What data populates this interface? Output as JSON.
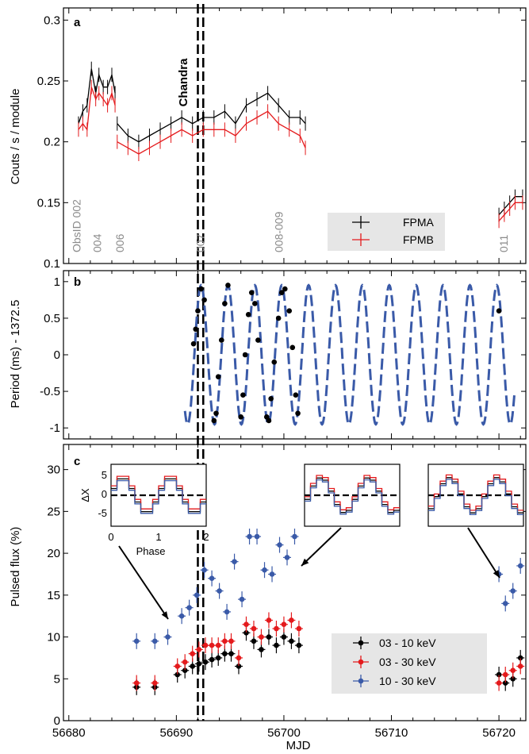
{
  "chart_data": [
    {
      "panel": "a",
      "type": "line",
      "ylabel": "Couts / s / module",
      "ylim": [
        0.1,
        0.31
      ],
      "yticks": [
        "0.1",
        "0.15",
        "0.2",
        "0.25",
        "0.3"
      ],
      "xlim": [
        56679.5,
        56722.5
      ],
      "annotation": "Chandra",
      "obsid_labels": [
        "ObsID 002",
        "004",
        "006",
        "007",
        "008-009",
        "011"
      ],
      "obsid_mjd": [
        56680.8,
        56682.7,
        56684.8,
        56692.3,
        56699.6,
        56720.5
      ],
      "legend": [
        "FPMA",
        "FPMB"
      ],
      "series": [
        {
          "name": "FPMA",
          "color": "#000000",
          "segments": [
            {
              "x": [
                56680.9,
                56681.3,
                56681.7,
                56682.1,
                56682.5,
                56682.8,
                56683.2,
                56683.6,
                56684.0,
                56684.3
              ],
              "y": [
                0.215,
                0.225,
                0.23,
                0.26,
                0.24,
                0.255,
                0.245,
                0.245,
                0.255,
                0.24
              ]
            },
            {
              "x": [
                56684.5,
                56685.5,
                56686.5,
                56687.5,
                56688.5,
                56689.5,
                56690.5,
                56691.5,
                56692.5,
                56693.5,
                56694.5,
                56695.5,
                56696.5,
                56697.5,
                56698.5,
                56699.5,
                56700.5,
                56701.5,
                56702.0
              ],
              "y": [
                0.215,
                0.205,
                0.2,
                0.205,
                0.21,
                0.215,
                0.22,
                0.215,
                0.22,
                0.22,
                0.225,
                0.215,
                0.23,
                0.235,
                0.24,
                0.23,
                0.22,
                0.22,
                0.215
              ]
            },
            {
              "x": [
                56720.0,
                56720.5,
                56721.0,
                56721.5,
                56722.2
              ],
              "y": [
                0.14,
                0.145,
                0.15,
                0.155,
                0.155
              ]
            }
          ]
        },
        {
          "name": "FPMB",
          "color": "#e41a1c",
          "segments": [
            {
              "x": [
                56680.9,
                56681.3,
                56681.7,
                56682.1,
                56682.5,
                56682.8,
                56683.2,
                56683.6,
                56684.0,
                56684.3
              ],
              "y": [
                0.21,
                0.215,
                0.21,
                0.245,
                0.235,
                0.24,
                0.235,
                0.23,
                0.24,
                0.23
              ]
            },
            {
              "x": [
                56684.5,
                56685.5,
                56686.5,
                56687.5,
                56688.5,
                56689.5,
                56690.5,
                56691.5,
                56692.5,
                56693.5,
                56694.5,
                56695.5,
                56696.5,
                56697.5,
                56698.5,
                56699.5,
                56700.5,
                56701.5,
                56702.0
              ],
              "y": [
                0.2,
                0.195,
                0.19,
                0.195,
                0.2,
                0.205,
                0.21,
                0.205,
                0.21,
                0.21,
                0.21,
                0.205,
                0.215,
                0.22,
                0.225,
                0.215,
                0.21,
                0.205,
                0.195
              ]
            },
            {
              "x": [
                56720.0,
                56720.5,
                56721.0,
                56721.5,
                56722.2
              ],
              "y": [
                0.135,
                0.14,
                0.145,
                0.15,
                0.15
              ]
            }
          ]
        }
      ]
    },
    {
      "panel": "b",
      "type": "scatter",
      "ylabel": "Period (ms) - 1372.5",
      "ylim": [
        -1.15,
        1.15
      ],
      "yticks": [
        "-1",
        "-0.5",
        "0",
        "0.5",
        "1"
      ],
      "xlim": [
        56679.5,
        56722.5
      ],
      "model": {
        "x_start": 56690.8,
        "x_end": 56721.5,
        "period_days": 2.5,
        "amplitude": 0.95,
        "peak_mjd": 56692.3,
        "color": "#3a5aa8"
      },
      "points": {
        "x": [
          56691.6,
          56691.8,
          56692.0,
          56692.3,
          56692.6,
          56693.5,
          56693.7,
          56693.9,
          56694.2,
          56694.5,
          56694.8,
          56696.0,
          56696.2,
          56696.4,
          56696.7,
          56697.0,
          56697.3,
          56697.6,
          56698.4,
          56698.6,
          56698.8,
          56699.1,
          56699.5,
          56699.8,
          56700.1,
          56700.5,
          56700.8,
          56701.1,
          56701.3,
          56720.0
        ],
        "y": [
          0.15,
          0.35,
          0.6,
          0.9,
          0.75,
          -0.9,
          -0.8,
          -0.3,
          0.2,
          0.7,
          0.95,
          -0.85,
          -0.55,
          0.0,
          0.55,
          0.85,
          0.7,
          0.2,
          -0.85,
          -0.9,
          -0.6,
          -0.1,
          0.5,
          0.85,
          0.9,
          0.6,
          0.1,
          -0.55,
          -0.8,
          0.6
        ]
      }
    },
    {
      "panel": "c",
      "type": "scatter",
      "ylabel": "Pulsed flux (%)",
      "xlabel": "MJD",
      "ylim": [
        0,
        33
      ],
      "yticks": [
        "0",
        "5",
        "10",
        "15",
        "20",
        "25",
        "30"
      ],
      "xlim": [
        56679.5,
        56722.5
      ],
      "xticks": [
        "56680",
        "56690",
        "56700",
        "56710",
        "56720"
      ],
      "legend": [
        "03 - 10 keV",
        "03 - 30 keV",
        "10 - 30 keV"
      ],
      "series": [
        {
          "name": "03 - 10 keV",
          "color": "#000000",
          "x": [
            56686.3,
            56688.0,
            56690.1,
            56690.8,
            56691.5,
            56692.1,
            56692.7,
            56693.3,
            56693.9,
            56694.5,
            56695.1,
            56695.8,
            56696.5,
            56697.2,
            56697.9,
            56698.6,
            56699.3,
            56700.0,
            56700.7,
            56701.4,
            56720.0,
            56720.6,
            56721.3,
            56722.0
          ],
          "y": [
            4.0,
            4.0,
            5.5,
            6.0,
            6.5,
            6.8,
            7.0,
            7.3,
            7.5,
            8.0,
            8.0,
            6.5,
            10.5,
            9.5,
            8.5,
            10.0,
            9.0,
            10.0,
            9.5,
            9.0,
            5.5,
            4.5,
            5.0,
            7.5
          ]
        },
        {
          "name": "03 - 30 keV",
          "color": "#e41a1c",
          "x": [
            56686.3,
            56688.0,
            56690.1,
            56690.8,
            56691.5,
            56692.1,
            56692.7,
            56693.3,
            56693.9,
            56694.5,
            56695.1,
            56695.8,
            56696.5,
            56697.2,
            56697.9,
            56698.6,
            56699.3,
            56700.0,
            56700.7,
            56701.4,
            56720.0,
            56720.6,
            56721.3,
            56722.0
          ],
          "y": [
            4.5,
            4.5,
            6.5,
            7.0,
            8.0,
            8.5,
            9.0,
            9.0,
            9.0,
            9.5,
            9.5,
            7.5,
            11.5,
            11.0,
            10.0,
            12.0,
            11.0,
            11.5,
            12.0,
            11.0,
            4.5,
            5.5,
            6.0,
            6.5
          ]
        },
        {
          "name": "10 - 30 keV",
          "color": "#3a5aa8",
          "x": [
            56686.3,
            56688.0,
            56689.2,
            56690.5,
            56691.2,
            56691.9,
            56692.6,
            56693.3,
            56694.0,
            56694.7,
            56695.4,
            56696.1,
            56696.8,
            56697.5,
            56698.2,
            56698.9,
            56699.6,
            56700.3,
            56701.0,
            56720.0,
            56720.6,
            56721.3,
            56722.0
          ],
          "y": [
            9.5,
            9.5,
            10.0,
            12.5,
            13.5,
            15.0,
            18.0,
            17.0,
            15.5,
            13.0,
            19.0,
            14.5,
            22.0,
            22.0,
            18.0,
            17.5,
            21.0,
            19.5,
            22.0,
            17.5,
            14.0,
            15.5,
            18.5
          ]
        }
      ],
      "insets": [
        {
          "ylabel": "ΔX",
          "xlabel": "Phase",
          "xticks": [
            "0",
            "1",
            "2"
          ],
          "yticks": [
            "5",
            "0",
            "-5"
          ]
        },
        {
          "ylabel": "",
          "xlabel": "",
          "xticks": [],
          "yticks": []
        },
        {
          "ylabel": "",
          "xlabel": "",
          "xticks": [],
          "yticks": []
        }
      ]
    }
  ]
}
